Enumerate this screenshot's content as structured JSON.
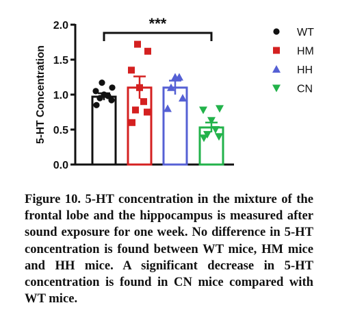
{
  "chart_data": {
    "type": "bar",
    "ylabel": "5-HT Concentration",
    "xlabel": "",
    "ylim": [
      0,
      2.0
    ],
    "yticks": [
      "0.0",
      "0.5",
      "1.0",
      "1.5",
      "2.0"
    ],
    "grid": false,
    "legend_position": "right",
    "significance": {
      "label": "***",
      "between": [
        "WT",
        "CN"
      ]
    },
    "series": [
      {
        "name": "WT",
        "color": "#111111",
        "marker": "circle",
        "mean": 0.97,
        "sem": 0.05,
        "points": [
          0.85,
          0.92,
          0.95,
          0.98,
          1.0,
          1.05,
          1.1,
          1.17
        ]
      },
      {
        "name": "HM",
        "color": "#d42020",
        "marker": "square",
        "mean": 1.1,
        "sem": 0.16,
        "points": [
          0.6,
          0.75,
          0.78,
          0.9,
          1.1,
          1.35,
          1.62,
          1.72
        ]
      },
      {
        "name": "HH",
        "color": "#5560d4",
        "marker": "triangle",
        "mean": 1.1,
        "sem": 0.1,
        "points": [
          0.8,
          0.95,
          1.1,
          1.25,
          1.25
        ]
      },
      {
        "name": "CN",
        "color": "#22b24a",
        "marker": "triangle-down",
        "mean": 0.53,
        "sem": 0.07,
        "points": [
          0.38,
          0.4,
          0.43,
          0.5,
          0.63,
          0.78,
          0.8
        ]
      }
    ]
  },
  "caption": "Figure 10. 5-HT concentration in the mixture of the frontal lobe and the hippocampus is measured after sound exposure for one week. No difference in 5-HT concentration is found between WT mice, HM mice and HH mice. A significant decrease in 5-HT concentration is found in CN mice compared with WT mice."
}
